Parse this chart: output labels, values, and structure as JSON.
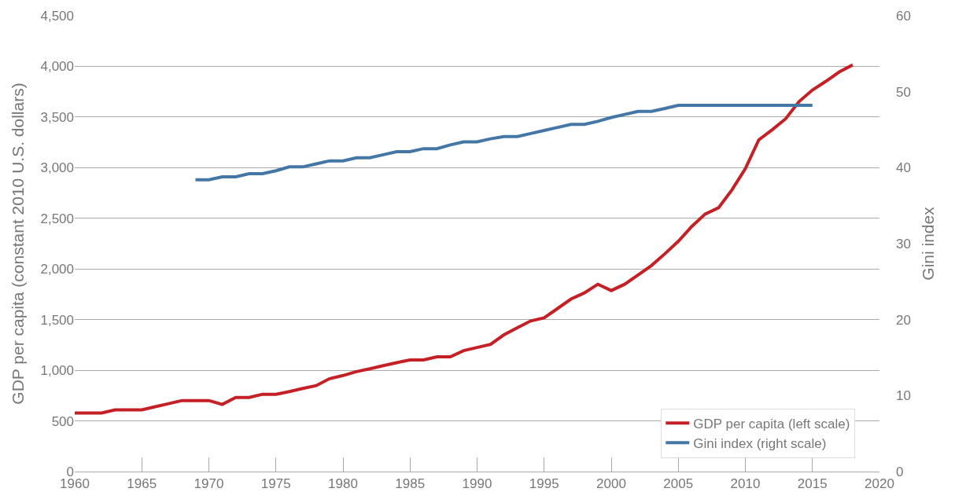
{
  "chart_data": {
    "type": "line",
    "xlabel": null,
    "ylabel": "GDP per capita (constant 2010 U.S. dollars)",
    "y2label": "Gini index",
    "xlim": [
      1960,
      2020
    ],
    "xticks": [
      1960,
      1965,
      1970,
      1975,
      1980,
      1985,
      1990,
      1995,
      2000,
      2005,
      2010,
      2015,
      2020
    ],
    "ylim": [
      0,
      4500
    ],
    "yticks": [
      {
        "value": 0,
        "label": "0"
      },
      {
        "value": 500,
        "label": "500"
      },
      {
        "value": 1000,
        "label": "1,000"
      },
      {
        "value": 1500,
        "label": "1,500"
      },
      {
        "value": 2000,
        "label": "2,000"
      },
      {
        "value": 2500,
        "label": "2,500"
      },
      {
        "value": 3000,
        "label": "3,000"
      },
      {
        "value": 3500,
        "label": "3,500"
      },
      {
        "value": 4000,
        "label": "4,000"
      },
      {
        "value": 4500,
        "label": "4,500"
      }
    ],
    "y2lim": [
      0,
      60
    ],
    "y2ticks": [
      0,
      10,
      20,
      30,
      40,
      50,
      60
    ],
    "grid": "y",
    "legend": "bottom right",
    "marker": "none",
    "line_style": "solid",
    "series": [
      {
        "name": "GDP per capita (left scale)",
        "color": "#c42026",
        "axis": "y",
        "x": [
          1960,
          1961,
          1962,
          1963,
          1964,
          1965,
          1966,
          1967,
          1968,
          1969,
          1970,
          1971,
          1972,
          1973,
          1974,
          1975,
          1976,
          1977,
          1978,
          1979,
          1980,
          1981,
          1982,
          1983,
          1984,
          1985,
          1986,
          1987,
          1988,
          1989,
          1990,
          1991,
          1992,
          1993,
          1994,
          1995,
          1996,
          1997,
          1998,
          1999,
          2000,
          2001,
          2002,
          2003,
          2004,
          2005,
          2006,
          2007,
          2008,
          2009,
          2010,
          2011,
          2012,
          2013,
          2014,
          2015,
          2016,
          2017,
          2018
        ],
        "values": [
          578,
          578,
          578,
          609,
          609,
          609,
          640,
          670,
          701,
          701,
          701,
          663,
          732,
          732,
          763,
          763,
          790,
          820,
          848,
          917,
          948,
          986,
          1015,
          1045,
          1075,
          1102,
          1102,
          1133,
          1133,
          1194,
          1225,
          1256,
          1350,
          1420,
          1487,
          1518,
          1610,
          1703,
          1764,
          1849,
          1787,
          1849,
          1941,
          2034,
          2150,
          2273,
          2419,
          2542,
          2604,
          2780,
          2990,
          3274,
          3374,
          3482,
          3652,
          3767,
          3852,
          3945,
          4014
        ]
      },
      {
        "name": "Gini index (right scale)",
        "color": "#4577a6",
        "axis": "y2",
        "x": [
          1969,
          1970,
          1971,
          1972,
          1973,
          1974,
          1975,
          1976,
          1977,
          1978,
          1979,
          1980,
          1981,
          1982,
          1983,
          1984,
          1985,
          1986,
          1987,
          1988,
          1989,
          1990,
          1991,
          1992,
          1993,
          1994,
          1995,
          1996,
          1997,
          1998,
          1999,
          2000,
          2001,
          2002,
          2003,
          2004,
          2005,
          2006,
          2007,
          2008,
          2009,
          2010,
          2011,
          2012,
          2013,
          2014,
          2015
        ],
        "values": [
          38.4,
          38.4,
          38.8,
          38.8,
          39.2,
          39.2,
          39.6,
          40.1,
          40.1,
          40.5,
          40.9,
          40.9,
          41.3,
          41.3,
          41.7,
          42.1,
          42.1,
          42.5,
          42.5,
          43.0,
          43.4,
          43.4,
          43.8,
          44.1,
          44.1,
          44.5,
          44.9,
          45.3,
          45.7,
          45.7,
          46.1,
          46.6,
          47.0,
          47.4,
          47.4,
          47.8,
          48.2,
          48.2,
          48.2,
          48.2,
          48.2,
          48.2,
          48.2,
          48.2,
          48.2,
          48.2,
          48.2
        ]
      }
    ]
  }
}
